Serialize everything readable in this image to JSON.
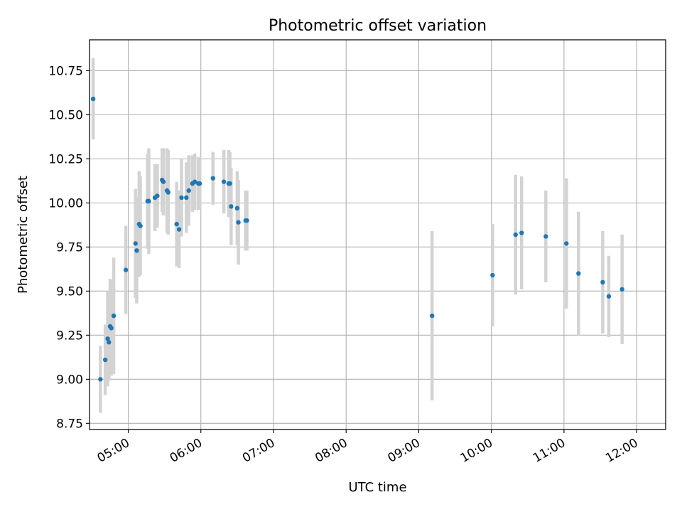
{
  "chart_data": {
    "type": "scatter",
    "title": "Photometric offset variation",
    "xlabel": "UTC time",
    "ylabel": "Photometric offset",
    "x_range_minutes": [
      268,
      744
    ],
    "ylim": [
      8.715,
      10.925
    ],
    "x_ticks": [
      {
        "label": "05:00",
        "minutes": 300
      },
      {
        "label": "06:00",
        "minutes": 360
      },
      {
        "label": "07:00",
        "minutes": 420
      },
      {
        "label": "08:00",
        "minutes": 480
      },
      {
        "label": "09:00",
        "minutes": 540
      },
      {
        "label": "10:00",
        "minutes": 600
      },
      {
        "label": "11:00",
        "minutes": 660
      },
      {
        "label": "12:00",
        "minutes": 720
      }
    ],
    "y_ticks": [
      {
        "label": "8.75",
        "value": 8.75
      },
      {
        "label": "9.00",
        "value": 9.0
      },
      {
        "label": "9.25",
        "value": 9.25
      },
      {
        "label": "9.50",
        "value": 9.5
      },
      {
        "label": "9.75",
        "value": 9.75
      },
      {
        "label": "10.00",
        "value": 10.0
      },
      {
        "label": "10.25",
        "value": 10.25
      },
      {
        "label": "10.50",
        "value": 10.5
      },
      {
        "label": "10.75",
        "value": 10.75
      }
    ],
    "grid": true,
    "colors": {
      "marker": "#1f77b4",
      "errorbar": "#d3d3d3",
      "grid": "#b0b0b0",
      "axes": "#000000"
    },
    "series": [
      {
        "x_time": [
          "04:31",
          "04:37",
          "04:41",
          "04:43",
          "04:44",
          "04:45",
          "04:46",
          "04:48",
          "04:58",
          "05:06",
          "05:07",
          "05:09",
          "05:10",
          "05:16",
          "05:17",
          "05:22",
          "05:24",
          "05:28",
          "05:29",
          "05:32",
          "05:33",
          "05:40",
          "05:42",
          "05:44",
          "05:48",
          "05:50",
          "05:53",
          "05:55",
          "05:58",
          "05:59",
          "06:10",
          "06:19",
          "06:23",
          "06:24",
          "06:25",
          "06:30",
          "06:31",
          "06:37",
          "06:38",
          "09:11",
          "10:01",
          "10:20",
          "10:25",
          "10:45",
          "11:02",
          "11:12",
          "11:32",
          "11:37",
          "11:48"
        ],
        "y": [
          10.59,
          9.0,
          9.11,
          9.23,
          9.21,
          9.3,
          9.29,
          9.36,
          9.62,
          9.77,
          9.73,
          9.88,
          9.87,
          10.01,
          10.01,
          10.03,
          10.04,
          10.13,
          10.12,
          10.07,
          10.06,
          9.88,
          9.85,
          10.03,
          10.03,
          10.07,
          10.11,
          10.12,
          10.11,
          10.11,
          10.14,
          10.12,
          10.11,
          10.11,
          9.98,
          9.97,
          9.89,
          9.9,
          9.9,
          9.36,
          9.59,
          9.82,
          9.83,
          9.81,
          9.77,
          9.6,
          9.55,
          9.47,
          9.51
        ],
        "yerr": [
          0.23,
          0.19,
          0.2,
          0.27,
          0.22,
          0.27,
          0.27,
          0.33,
          0.25,
          0.31,
          0.3,
          0.3,
          0.28,
          0.27,
          0.3,
          0.19,
          0.18,
          0.18,
          0.19,
          0.24,
          0.24,
          0.24,
          0.22,
          0.22,
          0.2,
          0.2,
          0.16,
          0.16,
          0.15,
          0.15,
          0.15,
          0.18,
          0.19,
          0.18,
          0.22,
          0.21,
          0.24,
          0.17,
          0.17,
          0.48,
          0.29,
          0.34,
          0.32,
          0.26,
          0.37,
          0.35,
          0.29,
          0.23,
          0.31
        ]
      }
    ]
  }
}
